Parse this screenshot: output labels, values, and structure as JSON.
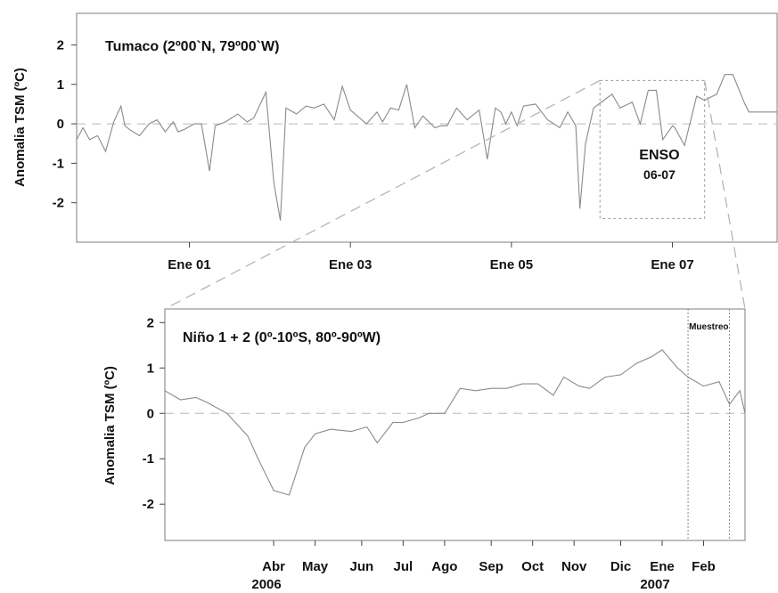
{
  "chart_data": [
    {
      "type": "line",
      "title": "Tumaco (2º00`N, 79º00`W)",
      "ylabel": "Anomalia TSM (ºC)",
      "xlabel": "",
      "x_range": [
        1999.6,
        2008.3
      ],
      "ylim": [
        -3,
        2.8
      ],
      "y_ticks": [
        "2",
        "1",
        "0",
        "-1",
        "-2"
      ],
      "x_ticks": [
        {
          "value": 2001.0,
          "label": "Ene 01"
        },
        {
          "value": 2003.0,
          "label": "Ene 03"
        },
        {
          "value": 2005.0,
          "label": "Ene 05"
        },
        {
          "value": 2007.0,
          "label": "Ene 07"
        }
      ],
      "zero_line": "dashed",
      "annotation": {
        "line1": "ENSO",
        "line2": "06-07",
        "x_range": [
          2006.1,
          2007.4
        ],
        "y_range": [
          -2.4,
          1.1
        ]
      },
      "series": [
        {
          "x": [
            1999.6,
            1999.68,
            1999.76,
            1999.86,
            1999.96,
            2000.06,
            2000.15,
            2000.2,
            2000.26,
            2000.38,
            2000.5,
            2000.6,
            2000.7,
            2000.8,
            2000.86,
            2000.93,
            2001.06,
            2001.15,
            2001.25,
            2001.32,
            2001.45,
            2001.6,
            2001.72,
            2001.8,
            2001.95,
            2002.05,
            2002.13,
            2002.2,
            2002.33,
            2002.45,
            2002.55,
            2002.67,
            2002.8,
            2002.9,
            2003.0,
            2003.2,
            2003.33,
            2003.4,
            2003.5,
            2003.6,
            2003.7,
            2003.8,
            2003.9,
            2004.05,
            2004.12,
            2004.2,
            2004.32,
            2004.45,
            2004.6,
            2004.7,
            2004.8,
            2004.87,
            2004.93,
            2005.0,
            2005.07,
            2005.15,
            2005.3,
            2005.45,
            2005.6,
            2005.7,
            2005.8,
            2005.85,
            2005.92,
            2006.02,
            2006.15,
            2006.25,
            2006.35,
            2006.5,
            2006.6,
            2006.7,
            2006.8,
            2006.88,
            2006.95,
            2007.0,
            2007.03,
            2007.15,
            2007.3,
            2007.4,
            2007.55,
            2007.65,
            2007.75,
            2007.9,
            2007.95,
            2008.05,
            2008.1,
            2008.2,
            2008.3
          ],
          "y": [
            -0.4,
            -0.1,
            -0.4,
            -0.3,
            -0.7,
            0.05,
            0.45,
            -0.05,
            -0.15,
            -0.3,
            0.0,
            0.1,
            -0.2,
            0.05,
            -0.2,
            -0.15,
            0.0,
            0.0,
            -1.2,
            -0.05,
            0.05,
            0.25,
            0.05,
            0.15,
            0.8,
            -1.5,
            -2.45,
            0.4,
            0.25,
            0.45,
            0.4,
            0.5,
            0.1,
            0.95,
            0.35,
            0.0,
            0.3,
            0.05,
            0.4,
            0.35,
            1.0,
            -0.1,
            0.2,
            -0.1,
            -0.05,
            -0.05,
            0.4,
            0.1,
            0.35,
            -0.9,
            0.4,
            0.3,
            0.0,
            0.3,
            -0.05,
            0.45,
            0.5,
            0.1,
            -0.1,
            0.3,
            -0.05,
            -2.15,
            -0.5,
            0.4,
            0.6,
            0.75,
            0.4,
            0.55,
            0.0,
            0.85,
            0.85,
            -0.4,
            -0.2,
            -0.05,
            -0.1,
            -0.55,
            0.7,
            0.6,
            0.75,
            1.25,
            1.25,
            0.5,
            0.3,
            0.3,
            0.3,
            0.3,
            0.3
          ]
        }
      ]
    },
    {
      "type": "line",
      "title": "Niño 1 + 2 (0º-10ºS, 80º-90ºW)",
      "ylabel": "Anomalia TSM (ºC)",
      "xlabel": "",
      "x_range": [
        2006.04,
        2007.16
      ],
      "ylim": [
        -2.8,
        2.3
      ],
      "y_ticks": [
        "2",
        "1",
        "0",
        "-1",
        "-2"
      ],
      "x_ticks": [
        {
          "value": 2006.25,
          "label": "Abr",
          "sublabel": "2006"
        },
        {
          "value": 2006.33,
          "label": "May"
        },
        {
          "value": 2006.42,
          "label": "Jun"
        },
        {
          "value": 2006.5,
          "label": "Jul"
        },
        {
          "value": 2006.58,
          "label": "Ago"
        },
        {
          "value": 2006.67,
          "label": "Sep"
        },
        {
          "value": 2006.75,
          "label": "Oct"
        },
        {
          "value": 2006.83,
          "label": "Nov"
        },
        {
          "value": 2006.92,
          "label": "Dic"
        },
        {
          "value": 2007.0,
          "label": "Ene",
          "sublabel": "2007"
        },
        {
          "value": 2007.08,
          "label": "Feb"
        }
      ],
      "zero_line": "dashed",
      "sampling_period": {
        "label": "Muestreo",
        "x_range": [
          2007.05,
          2007.13
        ]
      },
      "series": [
        {
          "x": [
            2006.04,
            2006.07,
            2006.1,
            2006.12,
            2006.16,
            2006.2,
            2006.22,
            2006.25,
            2006.28,
            2006.31,
            2006.33,
            2006.36,
            2006.4,
            2006.43,
            2006.45,
            2006.48,
            2006.5,
            2006.53,
            2006.55,
            2006.58,
            2006.61,
            2006.64,
            2006.67,
            2006.7,
            2006.73,
            2006.76,
            2006.79,
            2006.81,
            2006.84,
            2006.86,
            2006.89,
            2006.92,
            2006.95,
            2006.98,
            2007.0,
            2007.03,
            2007.05,
            2007.08,
            2007.11,
            2007.13,
            2007.15,
            2007.16
          ],
          "y": [
            0.5,
            0.3,
            0.35,
            0.25,
            0.0,
            -0.5,
            -1.0,
            -1.7,
            -1.8,
            -0.75,
            -0.45,
            -0.35,
            -0.4,
            -0.3,
            -0.65,
            -0.2,
            -0.2,
            -0.1,
            0.0,
            0.0,
            0.55,
            0.5,
            0.55,
            0.55,
            0.65,
            0.65,
            0.4,
            0.8,
            0.6,
            0.55,
            0.8,
            0.85,
            1.1,
            1.25,
            1.4,
            1.0,
            0.8,
            0.6,
            0.7,
            0.2,
            0.5,
            0.0
          ]
        }
      ]
    }
  ],
  "colors": {
    "line": "#8a8a8a",
    "frame": "#7d7d7d",
    "zero": "#b8b8b8",
    "zoom": "#b0b0b0"
  }
}
